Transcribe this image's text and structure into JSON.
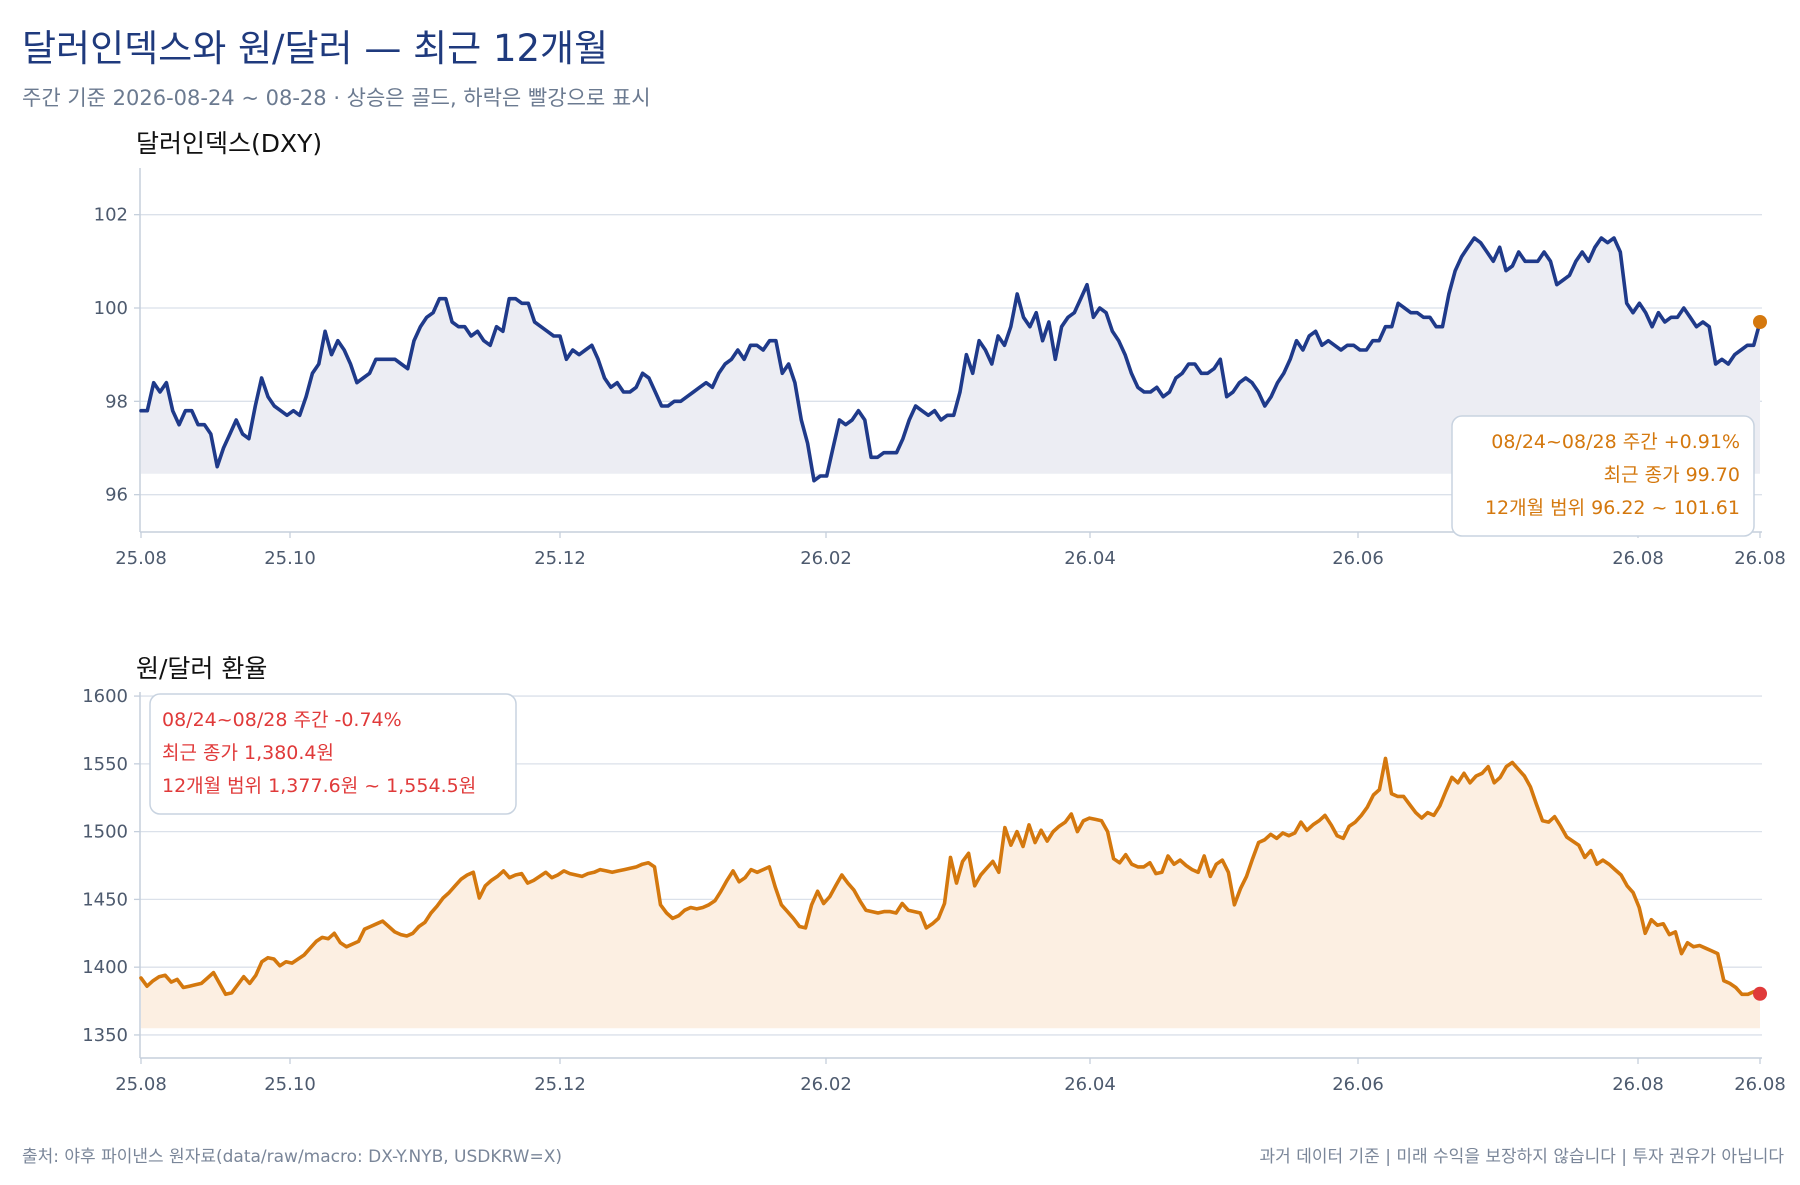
{
  "title": "달러인덱스와 원/달러 — 최근 12개월",
  "subtitle": "주간 기준 2026-08-24 ~ 08-28 · 상승은 골드, 하락은 빨강으로 표시",
  "source": "출처: 야후 파이낸스 원자료(data/raw/macro: DX-Y.NYB, USDKRW=X)",
  "disclaimer": "과거 데이터 기준 | 미래 수익을 보장하지 않습니다 | 투자 권유가 아닙니다",
  "colors": {
    "dxy_line": "#1f3a8a",
    "krw_line": "#d4780e",
    "up": "#d4780e",
    "down": "#e03a3a",
    "dxy_fill": "#ecedf3",
    "krw_fill": "#fcefe2"
  },
  "chart_data": [
    {
      "type": "line",
      "title": "달러인덱스(DXY)",
      "xlabel": "",
      "ylabel": "",
      "x_ticks": [
        "25.08",
        "25.10",
        "25.12",
        "26.02",
        "26.04",
        "26.06",
        "26.08",
        "26.08"
      ],
      "y_ticks": [
        96,
        98,
        100,
        102
      ],
      "ylim": [
        95.2,
        103.0
      ],
      "grid": true,
      "series": [
        {
          "name": "달러인덱스(DXY)",
          "values": [
            97.8,
            97.8,
            98.4,
            98.2,
            98.4,
            97.8,
            97.5,
            97.8,
            97.8,
            97.5,
            97.5,
            97.3,
            96.6,
            97.0,
            97.3,
            97.6,
            97.3,
            97.2,
            97.9,
            98.5,
            98.1,
            97.9,
            97.8,
            97.7,
            97.8,
            97.7,
            98.1,
            98.6,
            98.8,
            99.5,
            99.0,
            99.3,
            99.1,
            98.8,
            98.4,
            98.5,
            98.6,
            98.9,
            98.9,
            98.9,
            98.9,
            98.8,
            98.7,
            99.3,
            99.6,
            99.8,
            99.9,
            100.2,
            100.2,
            99.7,
            99.6,
            99.6,
            99.4,
            99.5,
            99.3,
            99.2,
            99.6,
            99.5,
            100.2,
            100.2,
            100.1,
            100.1,
            99.7,
            99.6,
            99.5,
            99.4,
            99.4,
            98.9,
            99.1,
            99.0,
            99.1,
            99.2,
            98.9,
            98.5,
            98.3,
            98.4,
            98.2,
            98.2,
            98.3,
            98.6,
            98.5,
            98.2,
            97.9,
            97.9,
            98.0,
            98.0,
            98.1,
            98.2,
            98.3,
            98.4,
            98.3,
            98.6,
            98.8,
            98.9,
            99.1,
            98.9,
            99.2,
            99.2,
            99.1,
            99.3,
            99.3,
            98.6,
            98.8,
            98.4,
            97.6,
            97.1,
            96.3,
            96.4,
            96.4,
            97.0,
            97.6,
            97.5,
            97.6,
            97.8,
            97.6,
            96.8,
            96.8,
            96.9,
            96.9,
            96.9,
            97.2,
            97.6,
            97.9,
            97.8,
            97.7,
            97.8,
            97.6,
            97.7,
            97.7,
            98.2,
            99.0,
            98.6,
            99.3,
            99.1,
            98.8,
            99.4,
            99.2,
            99.6,
            100.3,
            99.8,
            99.6,
            99.9,
            99.3,
            99.7,
            98.9,
            99.6,
            99.8,
            99.9,
            100.2,
            100.5,
            99.8,
            100.0,
            99.9,
            99.5,
            99.3,
            99.0,
            98.6,
            98.3,
            98.2,
            98.2,
            98.3,
            98.1,
            98.2,
            98.5,
            98.6,
            98.8,
            98.8,
            98.6,
            98.6,
            98.7,
            98.9,
            98.1,
            98.2,
            98.4,
            98.5,
            98.4,
            98.2,
            97.9,
            98.1,
            98.4,
            98.6,
            98.9,
            99.3,
            99.1,
            99.4,
            99.5,
            99.2,
            99.3,
            99.2,
            99.1,
            99.2,
            99.2,
            99.1,
            99.1,
            99.3,
            99.3,
            99.6,
            99.6,
            100.1,
            100.0,
            99.9,
            99.9,
            99.8,
            99.8,
            99.6,
            99.6,
            100.3,
            100.8,
            101.1,
            101.3,
            101.5,
            101.4,
            101.2,
            101.0,
            101.3,
            100.8,
            100.9,
            101.2,
            101.0,
            101.0,
            101.0,
            101.2,
            101.0,
            100.5,
            100.6,
            100.7,
            101.0,
            101.2,
            101.0,
            101.3,
            101.5,
            101.4,
            101.5,
            101.2,
            100.1,
            99.9,
            100.1,
            99.9,
            99.6,
            99.9,
            99.7,
            99.8,
            99.8,
            100.0,
            99.8,
            99.6,
            99.7,
            99.6,
            98.8,
            98.9,
            98.8,
            99.0,
            99.1,
            99.2,
            99.2,
            99.7
          ]
        }
      ],
      "annotation": [
        "08/24~08/28 주간 +0.91%",
        "최근 종가 99.70",
        "12개월 범위 96.22 ~ 101.61"
      ]
    },
    {
      "type": "line",
      "title": "원/달러 환율",
      "xlabel": "",
      "ylabel": "",
      "x_ticks": [
        "25.08",
        "25.10",
        "25.12",
        "26.02",
        "26.04",
        "26.06",
        "26.08",
        "26.08"
      ],
      "y_ticks": [
        1350,
        1400,
        1450,
        1500,
        1550,
        1600
      ],
      "ylim": [
        1333,
        1603
      ],
      "grid": true,
      "series": [
        {
          "name": "원/달러 환율",
          "values": [
            1392,
            1386,
            1390,
            1393,
            1394,
            1389,
            1391,
            1385,
            1386,
            1387,
            1388,
            1392,
            1396,
            1388,
            1380,
            1381,
            1387,
            1393,
            1388,
            1394,
            1404,
            1407,
            1406,
            1401,
            1404,
            1403,
            1406,
            1409,
            1414,
            1419,
            1422,
            1421,
            1425,
            1418,
            1415,
            1417,
            1419,
            1428,
            1430,
            1432,
            1434,
            1430,
            1426,
            1424,
            1423,
            1425,
            1430,
            1433,
            1440,
            1445,
            1451,
            1455,
            1460,
            1465,
            1468,
            1470,
            1451,
            1460,
            1464,
            1467,
            1471,
            1466,
            1468,
            1469,
            1462,
            1464,
            1467,
            1470,
            1466,
            1468,
            1471,
            1469,
            1468,
            1467,
            1469,
            1470,
            1472,
            1471,
            1470,
            1471,
            1472,
            1473,
            1474,
            1476,
            1477,
            1474,
            1446,
            1440,
            1436,
            1438,
            1442,
            1444,
            1443,
            1444,
            1446,
            1449,
            1456,
            1464,
            1471,
            1463,
            1466,
            1472,
            1470,
            1472,
            1474,
            1459,
            1446,
            1441,
            1436,
            1430,
            1429,
            1446,
            1456,
            1447,
            1452,
            1460,
            1468,
            1462,
            1457,
            1449,
            1442,
            1441,
            1440,
            1441,
            1441,
            1440,
            1447,
            1442,
            1441,
            1440,
            1429,
            1432,
            1436,
            1447,
            1481,
            1462,
            1478,
            1484,
            1460,
            1468,
            1473,
            1478,
            1470,
            1503,
            1490,
            1500,
            1489,
            1505,
            1492,
            1501,
            1493,
            1500,
            1504,
            1507,
            1513,
            1500,
            1508,
            1510,
            1509,
            1508,
            1500,
            1480,
            1477,
            1483,
            1476,
            1474,
            1474,
            1477,
            1469,
            1470,
            1482,
            1476,
            1479,
            1475,
            1472,
            1470,
            1482,
            1467,
            1476,
            1479,
            1470,
            1446,
            1458,
            1467,
            1480,
            1492,
            1494,
            1498,
            1495,
            1499,
            1497,
            1499,
            1507,
            1501,
            1505,
            1508,
            1512,
            1505,
            1497,
            1495,
            1504,
            1507,
            1512,
            1518,
            1527,
            1531,
            1554,
            1528,
            1526,
            1526,
            1520,
            1514,
            1510,
            1514,
            1512,
            1519,
            1530,
            1540,
            1536,
            1543,
            1536,
            1541,
            1543,
            1548,
            1536,
            1540,
            1548,
            1551,
            1546,
            1541,
            1533,
            1520,
            1508,
            1507,
            1511,
            1504,
            1496,
            1493,
            1490,
            1481,
            1486,
            1476,
            1479,
            1476,
            1472,
            1468,
            1460,
            1455,
            1444,
            1425,
            1435,
            1431,
            1432,
            1424,
            1426,
            1410,
            1418,
            1415,
            1416,
            1414,
            1412,
            1410,
            1390,
            1388,
            1385,
            1380,
            1380,
            1382,
            1380.4
          ]
        }
      ],
      "annotation": [
        "08/24~08/28 주간 -0.74%",
        "최근 종가 1,380.4원",
        "12개월 범위 1,377.6원 ~ 1,554.5원"
      ]
    }
  ]
}
